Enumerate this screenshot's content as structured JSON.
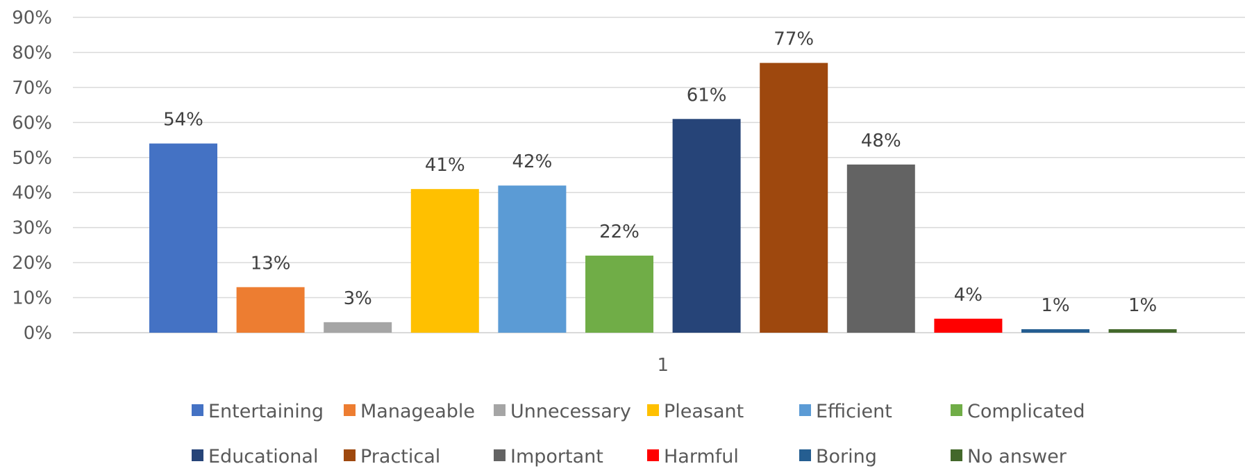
{
  "chart_data": {
    "type": "bar",
    "categories": [
      "1"
    ],
    "series": [
      {
        "name": "Entertaining",
        "values": [
          54
        ],
        "label": "54%",
        "color": "#4472C4"
      },
      {
        "name": "Manageable",
        "values": [
          13
        ],
        "label": "13%",
        "color": "#ED7D31"
      },
      {
        "name": "Unnecessary",
        "values": [
          3
        ],
        "label": "3%",
        "color": "#A5A5A5"
      },
      {
        "name": "Pleasant",
        "values": [
          41
        ],
        "label": "41%",
        "color": "#FFC000"
      },
      {
        "name": "Efficient",
        "values": [
          42
        ],
        "label": "42%",
        "color": "#5B9BD5"
      },
      {
        "name": "Complicated",
        "values": [
          22
        ],
        "label": "22%",
        "color": "#70AD47"
      },
      {
        "name": "Educational",
        "values": [
          61
        ],
        "label": "61%",
        "color": "#264478"
      },
      {
        "name": "Practical",
        "values": [
          77
        ],
        "label": "77%",
        "color": "#9E480E"
      },
      {
        "name": "Important",
        "values": [
          48
        ],
        "label": "48%",
        "color": "#636363"
      },
      {
        "name": "Harmful",
        "values": [
          4
        ],
        "label": "4%",
        "color": "#FF0000"
      },
      {
        "name": "Boring",
        "values": [
          1
        ],
        "label": "1%",
        "color": "#255E91"
      },
      {
        "name": "No answer",
        "values": [
          1
        ],
        "label": "1%",
        "color": "#43682B"
      }
    ],
    "y_ticks": [
      "0%",
      "10%",
      "20%",
      "30%",
      "40%",
      "50%",
      "60%",
      "70%",
      "80%",
      "90%"
    ],
    "ylim": [
      0,
      90
    ],
    "grid": true,
    "legend_position": "bottom",
    "title": "",
    "xlabel": "",
    "ylabel": ""
  }
}
